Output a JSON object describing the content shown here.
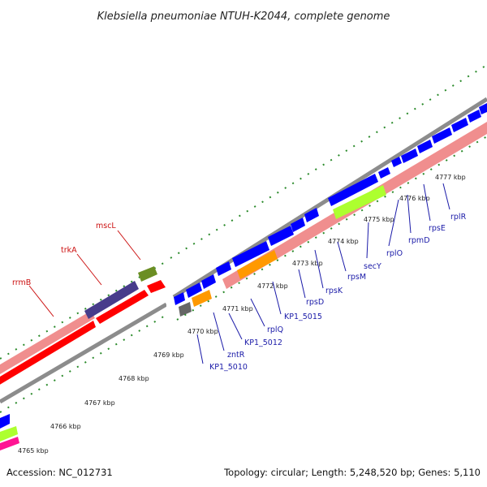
{
  "title": "Klebsiella pneumoniae NTUH-K2044, complete genome",
  "footer": {
    "accession": "Accession: NC_012731",
    "summary": "Topology: circular; Length: 5,248,520 bp; Genes: 5,110"
  },
  "colors": {
    "backbone": "#8c8c8c",
    "tick": "#2a8a2a",
    "label_red": "#cc1111",
    "label_blue": "#1a1aa8"
  },
  "position_labels": [
    "4765 kbp",
    "4766 kbp",
    "4767 kbp",
    "4768 kbp",
    "4769 kbp",
    "4770 kbp",
    "4771 kbp",
    "4772 kbp",
    "4773 kbp",
    "4774 kbp",
    "4775 kbp",
    "4776 kbp",
    "4777 kbp"
  ],
  "gene_labels": {
    "left": [
      "rrmB",
      "trkA",
      "mscL"
    ],
    "right": [
      "KP1_5010",
      "zntR",
      "KP1_5012",
      "rplQ",
      "KP1_5015",
      "rpsD",
      "rpsK",
      "rpsM",
      "secY",
      "rplO",
      "rpmD",
      "rpsE",
      "rplR"
    ]
  }
}
